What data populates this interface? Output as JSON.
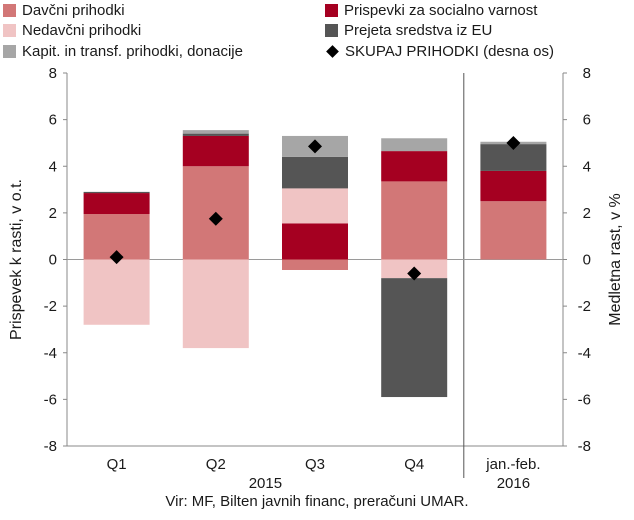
{
  "chart_data": {
    "type": "bar",
    "stacked": true,
    "categories": [
      "Q1",
      "Q2",
      "Q3",
      "Q4",
      "jan.-feb."
    ],
    "category_groups": [
      {
        "label": "2015",
        "span": [
          0,
          3
        ]
      },
      {
        "label": "2016",
        "span": [
          4,
          4
        ]
      }
    ],
    "ylabel": "Prispevek k rasti, v o.t.",
    "y2label": "Medletna rast, v %",
    "ylim": [
      -8,
      8
    ],
    "y2lim": [
      -8,
      8
    ],
    "yticks": [
      -8,
      -6,
      -4,
      -2,
      0,
      2,
      4,
      6,
      8
    ],
    "legend_position": "top",
    "separator_before_category": 4,
    "series": [
      {
        "name": "Davčni prihodki",
        "color": "#d27777",
        "values": [
          1.95,
          4.0,
          -0.45,
          3.35,
          2.5
        ]
      },
      {
        "name": "Prispevki za socialno varnost",
        "color": "#a50021",
        "values": [
          0.9,
          1.3,
          1.55,
          1.3,
          1.3
        ]
      },
      {
        "name": "Nedavčni prihodki",
        "color": "#f0c4c4",
        "values": [
          -2.8,
          -3.8,
          1.5,
          -0.8,
          0.0
        ]
      },
      {
        "name": "Prejeta sredstva iz EU",
        "color": "#555555",
        "values": [
          0.05,
          0.1,
          1.35,
          -5.1,
          1.15
        ]
      },
      {
        "name": "Kapit. in transf. prihodki, donacije",
        "color": "#a6a6a6",
        "values": [
          0.0,
          0.15,
          0.9,
          0.55,
          0.1
        ]
      }
    ],
    "line_series": {
      "name": "SKUPAJ PRIHODKI (desna os)",
      "axis": "right",
      "marker": "diamond",
      "color": "#000000",
      "values": [
        0.1,
        1.75,
        4.85,
        -0.6,
        5.0
      ]
    },
    "source": "Vir: MF, Bilten javnih financ, preračuni UMAR."
  }
}
